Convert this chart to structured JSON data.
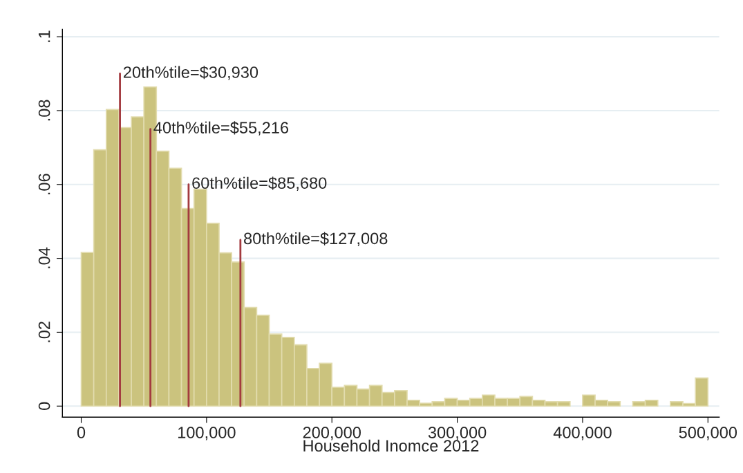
{
  "chart_data": {
    "type": "histogram",
    "xlabel": "Household Inomce 2012",
    "color": "#cbc37e",
    "bins": [
      0,
      10000,
      20000,
      30000,
      40000,
      50000,
      60000,
      70000,
      80000,
      90000,
      100000,
      110000,
      120000,
      130000,
      140000,
      150000,
      160000,
      170000,
      180000,
      190000,
      200000,
      210000,
      220000,
      230000,
      240000,
      250000,
      260000,
      270000,
      280000,
      290000,
      300000,
      310000,
      320000,
      330000,
      340000,
      350000,
      360000,
      370000,
      380000,
      390000,
      400000,
      410000,
      420000,
      430000,
      440000,
      450000,
      460000,
      470000,
      480000,
      490000,
      500000
    ],
    "values": [
      0.0416,
      0.0694,
      0.0803,
      0.0754,
      0.0783,
      0.0864,
      0.069,
      0.0644,
      0.0535,
      0.0587,
      0.0495,
      0.0415,
      0.039,
      0.0267,
      0.0246,
      0.0195,
      0.0186,
      0.0166,
      0.0102,
      0.0116,
      0.0051,
      0.0056,
      0.0046,
      0.0056,
      0.0037,
      0.0042,
      0.0016,
      0.0008,
      0.0012,
      0.0021,
      0.0016,
      0.0021,
      0.003,
      0.0021,
      0.0021,
      0.0026,
      0.0016,
      0.0012,
      0.0012,
      0,
      0.003,
      0.0016,
      0.0012,
      0,
      0.0012,
      0.0016,
      0,
      0.0012,
      0.0007,
      0.0076
    ],
    "xlim": [
      -15000,
      509000
    ],
    "xticks": [
      {
        "value": 0,
        "label": "0"
      },
      {
        "value": 100000,
        "label": "100,000"
      },
      {
        "value": 200000,
        "label": "200,000"
      },
      {
        "value": 300000,
        "label": "300,000"
      },
      {
        "value": 400000,
        "label": "400,000"
      },
      {
        "value": 500000,
        "label": "500,000"
      }
    ],
    "ylim": [
      -0.003,
      0.102
    ],
    "yticks": [
      {
        "value": 0,
        "label": "0"
      },
      {
        "value": 0.02,
        "label": ".02"
      },
      {
        "value": 0.04,
        "label": ".04"
      },
      {
        "value": 0.06,
        "label": ".06"
      },
      {
        "value": 0.08,
        "label": ".08"
      },
      {
        "value": 0.1,
        "label": ".1"
      }
    ],
    "grid": "y",
    "ref_lines": [
      {
        "axis": "x",
        "value": 30930,
        "color": "#a33a3f"
      },
      {
        "axis": "x",
        "value": 55216,
        "color": "#a33a3f"
      },
      {
        "axis": "x",
        "value": 85680,
        "color": "#a33a3f"
      },
      {
        "axis": "x",
        "value": 127008,
        "color": "#a33a3f"
      }
    ],
    "annotations": [
      {
        "text": "20th%tile=$30,930",
        "x": 30930,
        "y": 0.09
      },
      {
        "text": "40th%tile=$55,216",
        "x": 55216,
        "y": 0.075
      },
      {
        "text": "60th%tile=$85,680",
        "x": 85680,
        "y": 0.06
      },
      {
        "text": "80th%tile=$127,008",
        "x": 127008,
        "y": 0.045
      }
    ]
  }
}
